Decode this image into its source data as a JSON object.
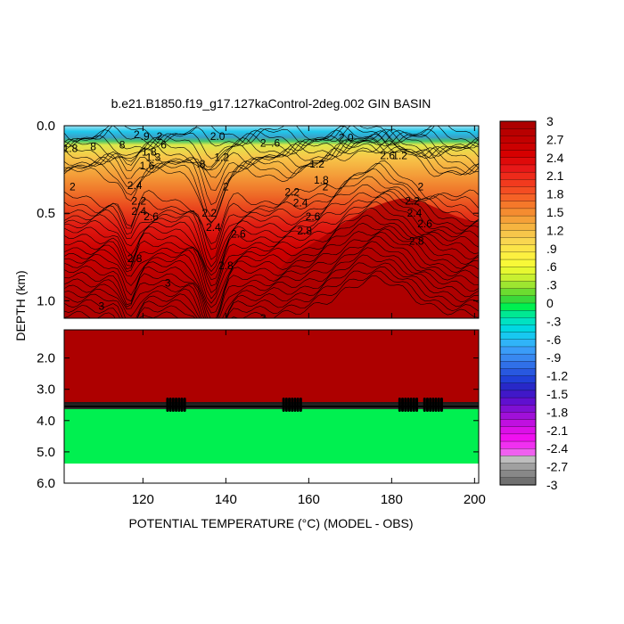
{
  "chart_data": {
    "type": "heatmap",
    "title": "b.e21.B1850.f19_g17.127kaControl-2deg.002 GIN BASIN",
    "xlabel_prefix": "POTENTIAL TEMPERATURE (",
    "xlabel_unit": "°C",
    "xlabel_suffix": ") (MODEL - OBS)",
    "ylabel": "DEPTH (km)",
    "xlim": [
      101,
      201
    ],
    "x_ticks": [
      120,
      140,
      160,
      180,
      200
    ],
    "x_tick_labels": [
      "120",
      "140",
      "160",
      "180",
      "200"
    ],
    "upper_panel": {
      "ylim": [
        0.0,
        1.1
      ],
      "y_ticks": [
        0.0,
        0.5,
        1.0
      ],
      "y_tick_labels": [
        "0.0",
        "0.5",
        "1.0"
      ]
    },
    "lower_panel": {
      "ylim": [
        1.1,
        6.0
      ],
      "y_ticks": [
        2.0,
        3.0,
        4.0,
        5.0,
        6.0
      ],
      "y_tick_labels": [
        "2.0",
        "3.0",
        "4.0",
        "5.0",
        "6.0"
      ],
      "layers": [
        {
          "depth_range": [
            1.1,
            3.4
          ],
          "value": 3.0
        },
        {
          "depth_range": [
            3.4,
            3.6
          ],
          "value": "transition"
        },
        {
          "depth_range": [
            3.6,
            5.35
          ],
          "value": 0.15
        }
      ],
      "no_data_below": 5.35
    },
    "colorbar": {
      "labels": [
        "3",
        "2.7",
        "2.4",
        "2.1",
        "1.8",
        "1.5",
        "1.2",
        ".9",
        ".6",
        ".3",
        "0",
        "-.3",
        "-.6",
        "-.9",
        "-1.2",
        "-1.5",
        "-1.8",
        "-2.1",
        "-2.4",
        "-2.7",
        "-3"
      ],
      "colors": [
        "#ad0000",
        "#b80000",
        "#c20000",
        "#cc0000",
        "#d60000",
        "#df0a0a",
        "#e81818",
        "#ee2a1a",
        "#f23a1e",
        "#f44d22",
        "#f56226",
        "#f5782a",
        "#f58c30",
        "#f5a038",
        "#f6b440",
        "#f7c64a",
        "#f9d650",
        "#fbe448",
        "#fcf040",
        "#f8f838",
        "#e6f830",
        "#c8f030",
        "#9ee630",
        "#6cdc30",
        "#3ad83a",
        "#00f050",
        "#00e892",
        "#00e2c2",
        "#00d8e2",
        "#18c8f0",
        "#30b4f8",
        "#3a9cf8",
        "#3888f0",
        "#3070e8",
        "#2858e0",
        "#2040d8",
        "#2828c8",
        "#4018c8",
        "#6010d0",
        "#8010d4",
        "#a010d8",
        "#c010e0",
        "#dc10e8",
        "#f010f0",
        "#f030f0",
        "#f060f0",
        "#bebebe",
        "#a0a0a0",
        "#888888",
        "#707070"
      ]
    },
    "contour_labels_upper": [
      {
        "text": "1.8",
        "x": 102.5,
        "y": 0.13
      },
      {
        "text": "2",
        "x": 103,
        "y": 0.35
      },
      {
        "text": "8",
        "x": 108,
        "y": 0.12
      },
      {
        "text": "8",
        "x": 115,
        "y": 0.11
      },
      {
        "text": "2",
        "x": 118.5,
        "y": 0.05
      },
      {
        "text": ".9",
        "x": 120.5,
        "y": 0.06
      },
      {
        "text": "2",
        "x": 124,
        "y": 0.06
      },
      {
        "text": "2.4",
        "x": 118,
        "y": 0.34
      },
      {
        "text": "2.2",
        "x": 119,
        "y": 0.43
      },
      {
        "text": "2.4",
        "x": 119,
        "y": 0.49
      },
      {
        "text": "2.6",
        "x": 122,
        "y": 0.52
      },
      {
        "text": "1.8",
        "x": 121.5,
        "y": 0.15
      },
      {
        "text": "1.3",
        "x": 122.5,
        "y": 0.18
      },
      {
        "text": "1.6",
        "x": 121,
        "y": 0.23
      },
      {
        "text": "2.8",
        "x": 118,
        "y": 0.76
      },
      {
        "text": "3",
        "x": 110,
        "y": 1.03
      },
      {
        "text": "3",
        "x": 126,
        "y": 0.9
      },
      {
        "text": "6",
        "x": 125,
        "y": 0.11
      },
      {
        "text": ".8",
        "x": 134,
        "y": 0.22
      },
      {
        "text": "2.0",
        "x": 138,
        "y": 0.06
      },
      {
        "text": "2.2",
        "x": 136,
        "y": 0.5
      },
      {
        "text": "2.4",
        "x": 137,
        "y": 0.58
      },
      {
        "text": "2.6",
        "x": 143,
        "y": 0.62
      },
      {
        "text": "2.8",
        "x": 140,
        "y": 0.8
      },
      {
        "text": "1.2",
        "x": 139,
        "y": 0.18
      },
      {
        "text": "2",
        "x": 140,
        "y": 0.35
      },
      {
        "text": "2",
        "x": 149,
        "y": 0.1
      },
      {
        "text": ".6",
        "x": 152,
        "y": 0.1
      },
      {
        "text": "3",
        "x": 149,
        "y": 1.1
      },
      {
        "text": "2.2",
        "x": 156,
        "y": 0.38
      },
      {
        "text": "2.4",
        "x": 158,
        "y": 0.44
      },
      {
        "text": "2.6",
        "x": 161,
        "y": 0.52
      },
      {
        "text": "2.8",
        "x": 159,
        "y": 0.6
      },
      {
        "text": "1.2",
        "x": 162,
        "y": 0.22
      },
      {
        "text": "1.8",
        "x": 163,
        "y": 0.31
      },
      {
        "text": "2",
        "x": 164,
        "y": 0.35
      },
      {
        "text": "2.0",
        "x": 169,
        "y": 0.07
      },
      {
        "text": "2.6",
        "x": 179,
        "y": 0.17
      },
      {
        "text": "1.2",
        "x": 182,
        "y": 0.17
      },
      {
        "text": "2.2",
        "x": 185,
        "y": 0.43
      },
      {
        "text": "2.4",
        "x": 185.5,
        "y": 0.5
      },
      {
        "text": "2.6",
        "x": 188,
        "y": 0.56
      },
      {
        "text": "2.8",
        "x": 186,
        "y": 0.66
      },
      {
        "text": "2",
        "x": 187,
        "y": 0.35
      }
    ]
  }
}
